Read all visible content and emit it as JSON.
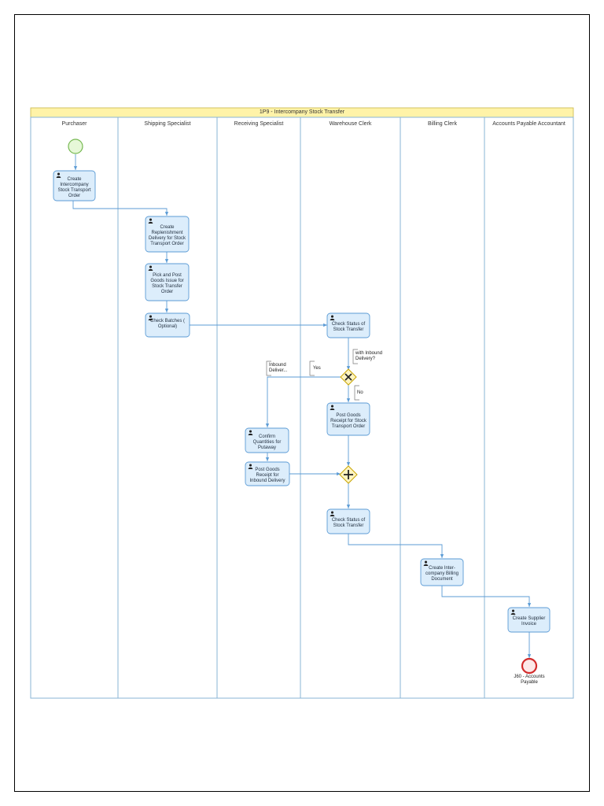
{
  "pool": {
    "title": "1P9 - Intercompany Stock Transfer"
  },
  "lanes": [
    {
      "name": "Purchaser"
    },
    {
      "name": "Shipping Specialist"
    },
    {
      "name": "Receiving Specialist"
    },
    {
      "name": "Warehouse Clerk"
    },
    {
      "name": "Billing Clerk"
    },
    {
      "name": "Accounts Payable Accountant"
    }
  ],
  "tasks": [
    {
      "label": "Create Intercompany Stock Transport Order"
    },
    {
      "label": "Create Replenishment Delivery for Stock Transport Order"
    },
    {
      "label": "Pick and Post Goods Issue for Stock Transfer Order"
    },
    {
      "label": "Check Batches ( Optional)"
    },
    {
      "label": "Check Status of Stock Transfer"
    },
    {
      "label": "Post Goods Receipt for Stock Transport Order"
    },
    {
      "label": "Confirm Quantities for Putaway"
    },
    {
      "label": "Post Goods Receipt for Inbound Delivery"
    },
    {
      "label": "Check Status of Stock Transfer"
    },
    {
      "label": "Create Inter-company Billing Document"
    },
    {
      "label": "Create Supplier Invoice"
    }
  ],
  "annotations": {
    "with_inbound": "with Inbound\nDelivery?",
    "inbound_deliver": "Inbound\nDeliver...",
    "yes": "Yes",
    "no": "No"
  },
  "end_event": {
    "label": "J60 - Accounts Payable"
  },
  "colors": {
    "pool_header": "#fff3a8",
    "lane_border": "#8ab4d6",
    "task_fill": "#dcedfb",
    "task_border": "#5b9bd5",
    "start_fill": "#e6f8d8",
    "start_stroke": "#76b852",
    "end_fill": "#fde8e8",
    "end_stroke": "#d22b2b",
    "gateway_fill": "#fff4c0",
    "gateway_stroke": "#c8a400",
    "flow": "#5b9bd5"
  }
}
